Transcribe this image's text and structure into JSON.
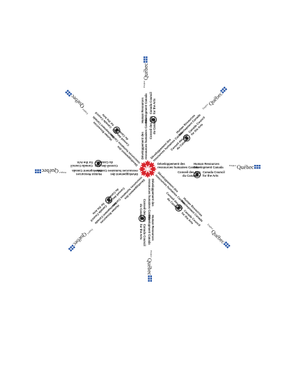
{
  "document": {
    "page_label": "Funders logo starburst"
  },
  "logos": {
    "hrdc_fr_line1": "Développement des",
    "hrdc_fr_line2": "ressources humaines Canada",
    "hrdc_en_line1": "Human Resources",
    "hrdc_en_line2": "Development Canada",
    "cac_fr_line1": "Conseil des Arts",
    "cac_fr_line2": "du Canada",
    "cac_en_line1": "Canada Council",
    "cac_en_line2": "for the Arts",
    "quebec_small": "Emploi",
    "quebec_main": "Québec"
  },
  "colors": {
    "maple_red": "#d8262e",
    "quebec_blue": "#1e4fa3",
    "ink": "#1a1a1a"
  },
  "arms": {
    "count": 8,
    "angles_deg": [
      0,
      45,
      90,
      135,
      180,
      225,
      270,
      315
    ]
  }
}
